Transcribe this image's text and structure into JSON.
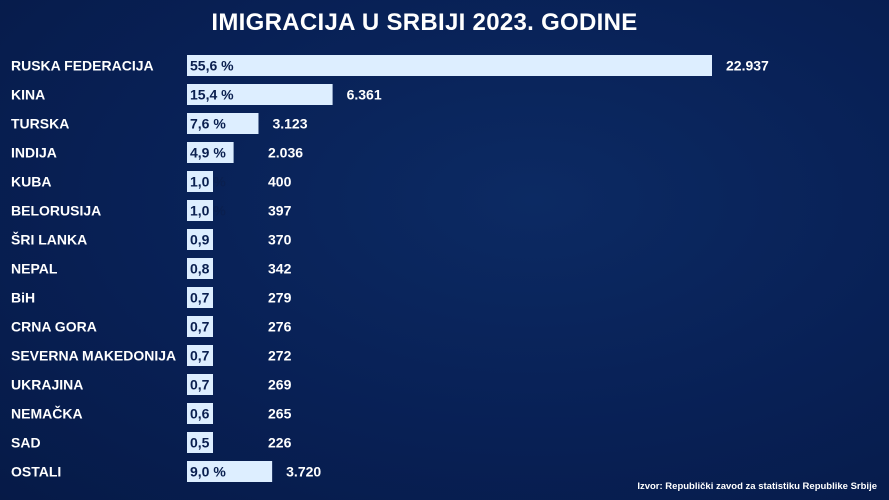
{
  "chart_data": {
    "type": "bar",
    "orientation": "horizontal",
    "title": "IMIGRACIJA U SRBIJI 2023. GODINE",
    "categories": [
      "RUSKA FEDERACIJA",
      "KINA",
      "TURSKA",
      "INDIJA",
      "KUBA",
      "BELORUSIJA",
      "ŠRI LANKA",
      "NEPAL",
      "BiH",
      "CRNA GORA",
      "SEVERNA MAKEDONIJA",
      "UKRAJINA",
      "NEMAČKA",
      "SAD",
      "OSTALI"
    ],
    "values": [
      22937,
      6361,
      3123,
      2036,
      400,
      397,
      370,
      342,
      279,
      276,
      272,
      269,
      265,
      226,
      3720
    ],
    "value_labels": [
      "22.937",
      "6.361",
      "3.123",
      "2.036",
      "400",
      "397",
      "370",
      "342",
      "279",
      "276",
      "272",
      "269",
      "265",
      "226",
      "3.720"
    ],
    "percent_labels": [
      "55,6 %",
      "15,4 %",
      "7,6 %",
      "4,9 %",
      "1,0 %",
      "1,0 %",
      "0,9",
      "0,8",
      "0,7",
      "0,7",
      "0,7",
      "0,7",
      "0,6",
      "0,5",
      "9,0 %"
    ],
    "bar_color": "#ddeeff",
    "grid": false,
    "legend": "none"
  },
  "source": "Izvor: Republički zavod za statistiku Republike Srbije"
}
